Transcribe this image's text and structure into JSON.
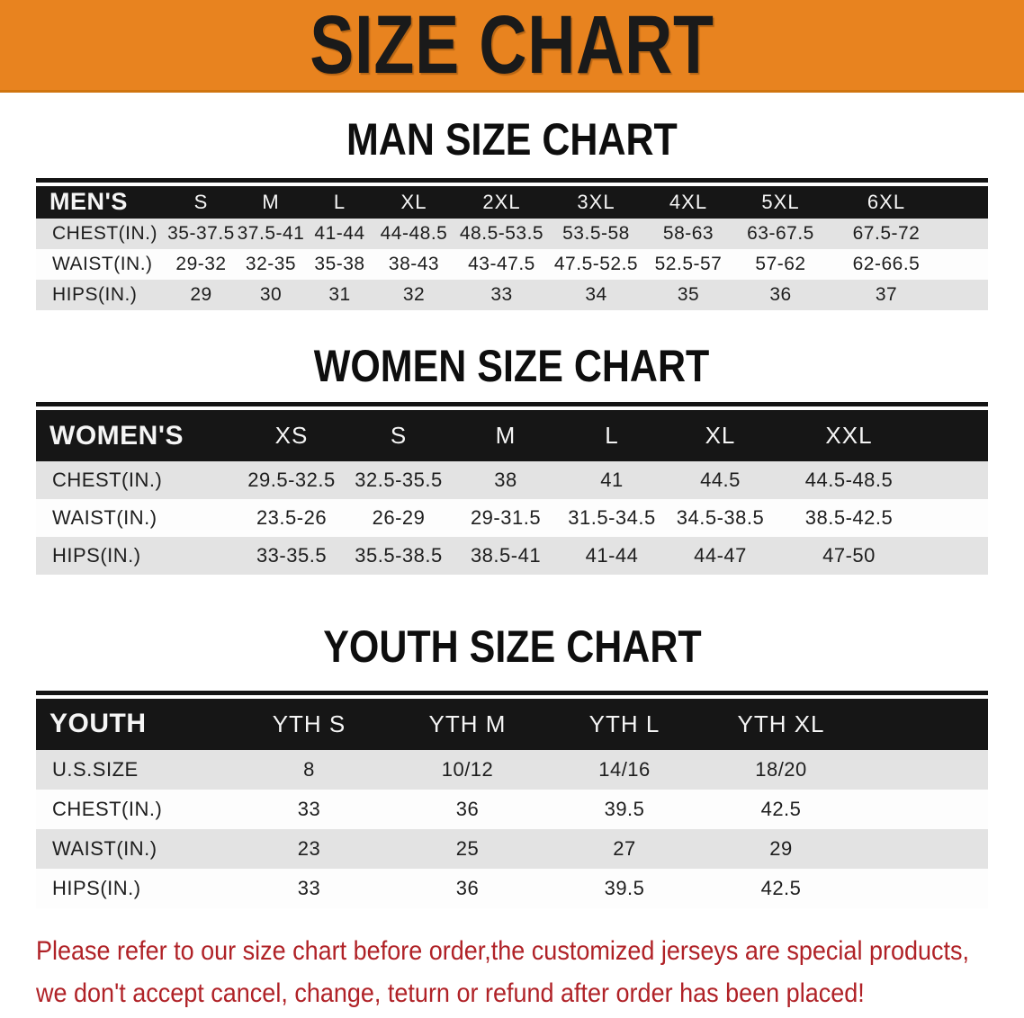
{
  "banner": {
    "title": "SIZE CHART"
  },
  "sections": [
    {
      "id": "men",
      "heading": "MAN SIZE CHART",
      "table": {
        "header_label": "MEN'S",
        "sizes": [
          "S",
          "M",
          "L",
          "XL",
          "2XL",
          "3XL",
          "4XL",
          "5XL",
          "6XL"
        ],
        "rows": [
          {
            "label": "CHEST(IN.)",
            "values": [
              "35-37.5",
              "37.5-41",
              "41-44",
              "44-48.5",
              "48.5-53.5",
              "53.5-58",
              "58-63",
              "63-67.5",
              "67.5-72"
            ]
          },
          {
            "label": "WAIST(IN.)",
            "values": [
              "29-32",
              "32-35",
              "35-38",
              "38-43",
              "43-47.5",
              "47.5-52.5",
              "52.5-57",
              "57-62",
              "62-66.5"
            ]
          },
          {
            "label": "HIPS(IN.)",
            "values": [
              "29",
              "30",
              "31",
              "32",
              "33",
              "34",
              "35",
              "36",
              "37"
            ]
          }
        ]
      }
    },
    {
      "id": "women",
      "heading": "WOMEN SIZE CHART",
      "table": {
        "header_label": "WOMEN'S",
        "sizes": [
          "XS",
          "S",
          "M",
          "L",
          "XL",
          "XXL"
        ],
        "rows": [
          {
            "label": "CHEST(IN.)",
            "values": [
              "29.5-32.5",
              "32.5-35.5",
              "38",
              "41",
              "44.5",
              "44.5-48.5"
            ]
          },
          {
            "label": "WAIST(IN.)",
            "values": [
              "23.5-26",
              "26-29",
              "29-31.5",
              "31.5-34.5",
              "34.5-38.5",
              "38.5-42.5"
            ]
          },
          {
            "label": "HIPS(IN.)",
            "values": [
              "33-35.5",
              "35.5-38.5",
              "38.5-41",
              "41-44",
              "44-47",
              "47-50"
            ]
          }
        ]
      }
    },
    {
      "id": "youth",
      "heading": "YOUTH SIZE CHART",
      "table": {
        "header_label": "YOUTH",
        "sizes": [
          "YTH S",
          "YTH M",
          "YTH L",
          "YTH XL"
        ],
        "rows": [
          {
            "label": "U.S.SIZE",
            "values": [
              "8",
              "10/12",
              "14/16",
              "18/20"
            ]
          },
          {
            "label": "CHEST(IN.)",
            "values": [
              "33",
              "36",
              "39.5",
              "42.5"
            ]
          },
          {
            "label": "WAIST(IN.)",
            "values": [
              "23",
              "25",
              "27",
              "29"
            ]
          },
          {
            "label": "HIPS(IN.)",
            "values": [
              "33",
              "36",
              "39.5",
              "42.5"
            ]
          }
        ]
      }
    }
  ],
  "disclaimer": {
    "lines": [
      "Please refer to our size chart before order,the customized jerseys are special products,",
      "we don't accept cancel, change, teturn or refund after order has been placed!"
    ]
  },
  "colors": {
    "banner_orange": "#e8831f",
    "header_black": "#161616",
    "row_gray": "#e3e3e3",
    "row_white": "#fdfdfd",
    "disclaimer_red": "#b02227"
  }
}
